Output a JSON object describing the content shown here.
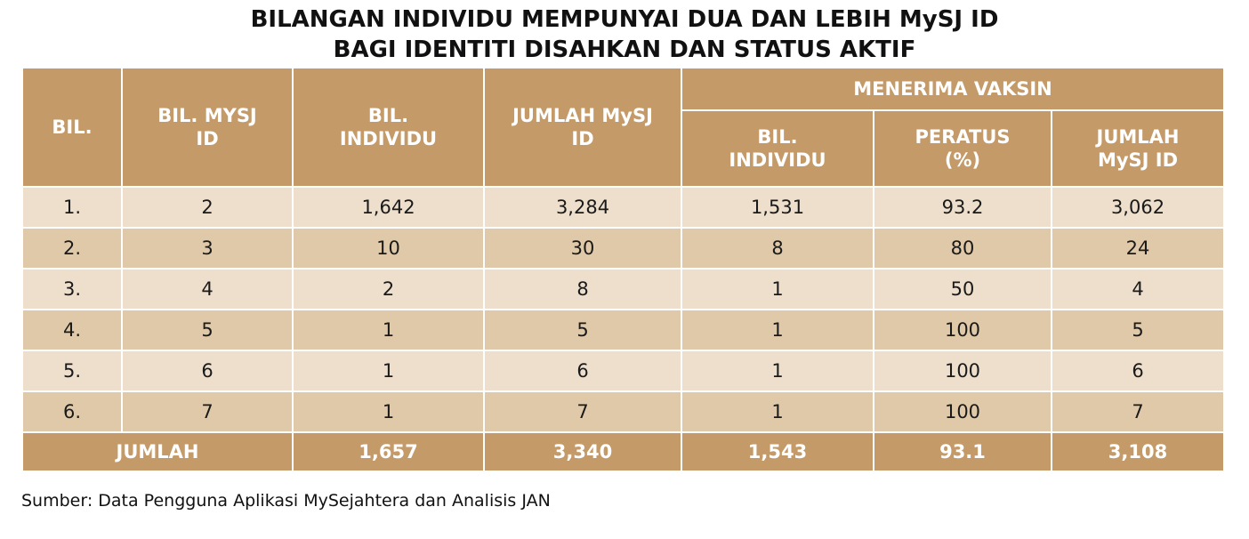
{
  "title": {
    "line1": "BILANGAN INDIVIDU MEMPUNYAI DUA DAN LEBIH MySJ ID",
    "line2": "BAGI IDENTITI DISAHKAN DAN STATUS AKTIF"
  },
  "table": {
    "headers": {
      "bil": "BIL.",
      "bil_mysj_1": "BIL. MYSJ",
      "bil_mysj_2": "ID",
      "bil_individu_1": "BIL.",
      "bil_individu_2": "INDIVIDU",
      "jumlah_mysj_1": "JUMLAH MySJ",
      "jumlah_mysj_2": "ID",
      "group": "MENERIMA VAKSIN",
      "vax_bil_1": "BIL.",
      "vax_bil_2": "INDIVIDU",
      "vax_pct_1": "PERATUS",
      "vax_pct_2": "(%)",
      "vax_jumlah_1": "JUMLAH",
      "vax_jumlah_2": "MySJ ID"
    },
    "rows": [
      [
        "1.",
        "2",
        "1,642",
        "3,284",
        "1,531",
        "93.2",
        "3,062"
      ],
      [
        "2.",
        "3",
        "10",
        "30",
        "8",
        "80",
        "24"
      ],
      [
        "3.",
        "4",
        "2",
        "8",
        "1",
        "50",
        "4"
      ],
      [
        "4.",
        "5",
        "1",
        "5",
        "1",
        "100",
        "5"
      ],
      [
        "5.",
        "6",
        "1",
        "6",
        "1",
        "100",
        "6"
      ],
      [
        "6.",
        "7",
        "1",
        "7",
        "1",
        "100",
        "7"
      ]
    ],
    "total": {
      "label": "JUMLAH",
      "values": [
        "1,657",
        "3,340",
        "1,543",
        "93.1",
        "3,108"
      ]
    }
  },
  "source": "Sumber: Data Pengguna Aplikasi MySejahtera dan Analisis JAN",
  "colors": {
    "header": "#c49a68",
    "row_light": "#eddfcc",
    "row_dark": "#e0c9a8"
  }
}
